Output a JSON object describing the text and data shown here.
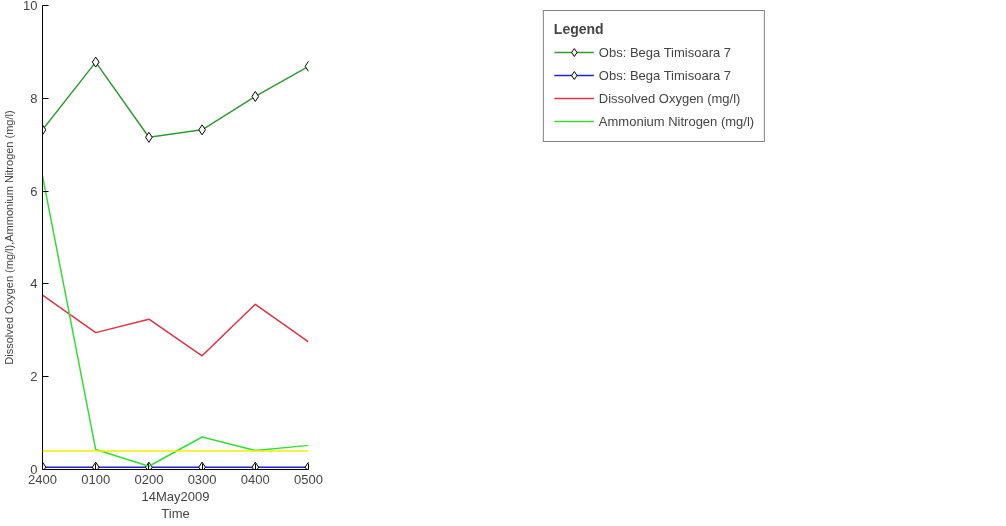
{
  "chart_data": {
    "type": "line",
    "xlabel": "Time",
    "ylabel": "Dissolved Oxygen (mg/l),Ammonium Nitrogen (mg/l)",
    "legend_title": "Legend",
    "annotations": [
      "14May2009"
    ],
    "categories": [
      "2400",
      "0100",
      "0200",
      "0300",
      "0400",
      "0500"
    ],
    "ylim": [
      0,
      10
    ],
    "yticks": [
      0,
      2,
      4,
      6,
      8,
      10
    ],
    "series": [
      {
        "name": "Obs: Bega Timisoara 7",
        "color": "#339933",
        "marker": "diamond",
        "values": [
          7.32,
          8.78,
          7.16,
          7.32,
          8.04,
          8.69
        ]
      },
      {
        "name": "Obs: Bega Timisoara 7",
        "color": "#2222cc",
        "marker": "diamond",
        "values": [
          0.05,
          0.05,
          0.05,
          0.05,
          0.05,
          0.05
        ]
      },
      {
        "name": "Dissolved Oxygen (mg/l)",
        "color": "#dd3344",
        "marker": "none",
        "values": [
          3.76,
          2.95,
          3.24,
          2.45,
          3.56,
          2.75
        ]
      },
      {
        "name": "Ammonium Nitrogen (mg/l)",
        "color": "#33dd33",
        "marker": "none",
        "values": [
          6.33,
          0.43,
          0.07,
          0.7,
          0.41,
          0.52
        ]
      }
    ],
    "ref_lines": [
      {
        "axis": "y",
        "value": 0.4,
        "label": null,
        "color": "#eeee00"
      }
    ],
    "grid": false,
    "legend": "right",
    "line_style": "solid"
  }
}
